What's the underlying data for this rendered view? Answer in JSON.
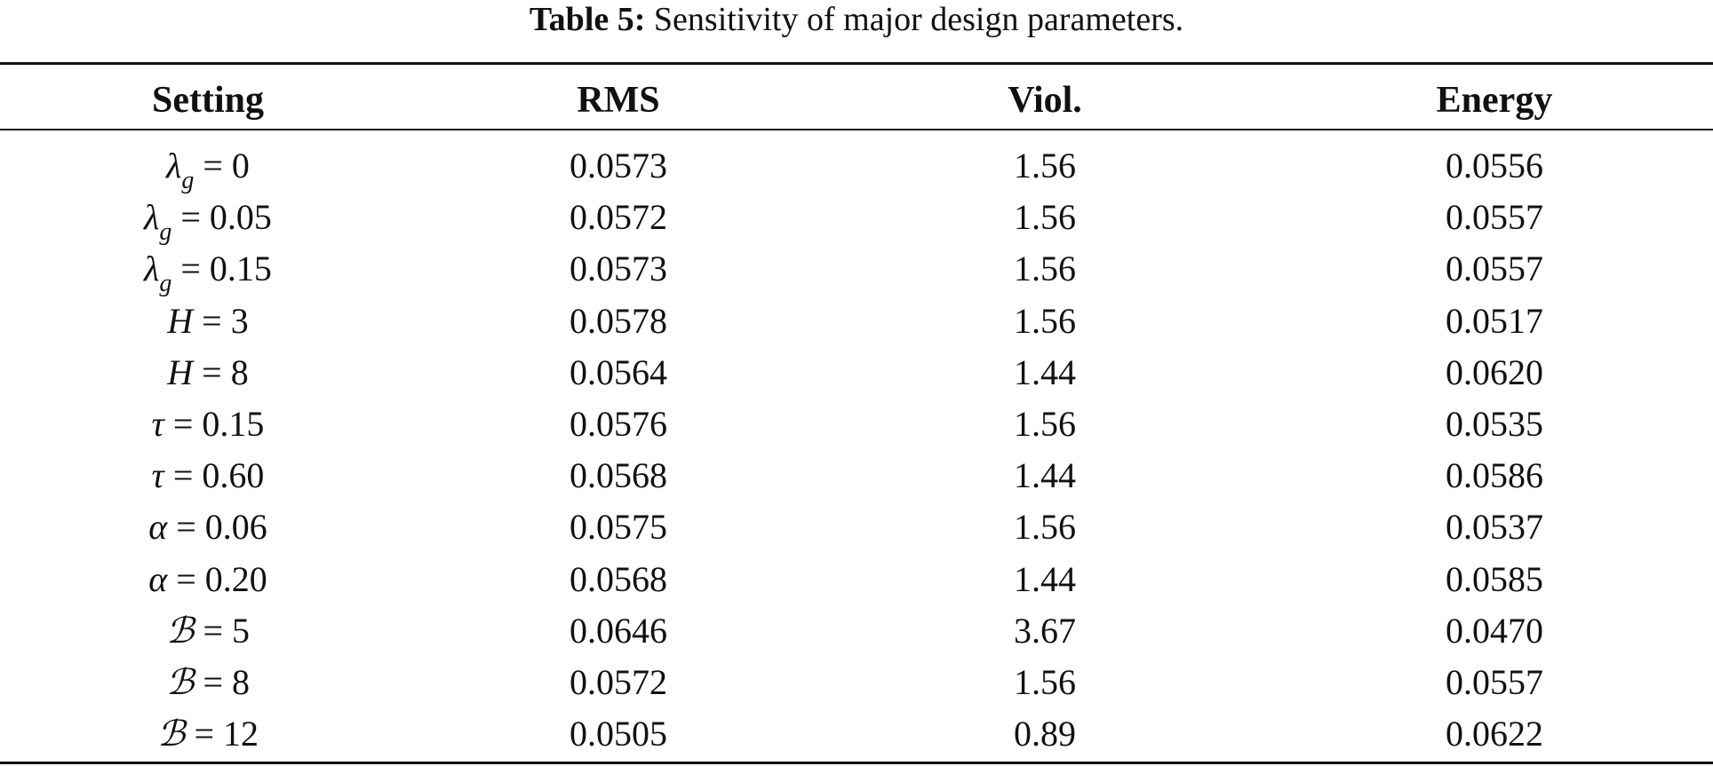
{
  "caption": {
    "label": "Table 5:",
    "text": " Sensitivity of major design parameters."
  },
  "table": {
    "columns": [
      "Setting",
      "RMS",
      "Viol.",
      "Energy"
    ],
    "rows": [
      {
        "symbol": "λ",
        "sub": "g",
        "rest": " = 0",
        "script": false,
        "rms": "0.0573",
        "viol": "1.56",
        "energy": "0.0556"
      },
      {
        "symbol": "λ",
        "sub": "g",
        "rest": " = 0.05",
        "script": false,
        "rms": "0.0572",
        "viol": "1.56",
        "energy": "0.0557"
      },
      {
        "symbol": "λ",
        "sub": "g",
        "rest": " = 0.15",
        "script": false,
        "rms": "0.0573",
        "viol": "1.56",
        "energy": "0.0557"
      },
      {
        "symbol": "H",
        "sub": "",
        "rest": " = 3",
        "script": false,
        "rms": "0.0578",
        "viol": "1.56",
        "energy": "0.0517"
      },
      {
        "symbol": "H",
        "sub": "",
        "rest": " = 8",
        "script": false,
        "rms": "0.0564",
        "viol": "1.44",
        "energy": "0.0620"
      },
      {
        "symbol": "τ",
        "sub": "",
        "rest": " = 0.15",
        "script": false,
        "rms": "0.0576",
        "viol": "1.56",
        "energy": "0.0535"
      },
      {
        "symbol": "τ",
        "sub": "",
        "rest": " = 0.60",
        "script": false,
        "rms": "0.0568",
        "viol": "1.44",
        "energy": "0.0586"
      },
      {
        "symbol": "α",
        "sub": "",
        "rest": " = 0.06",
        "script": false,
        "rms": "0.0575",
        "viol": "1.56",
        "energy": "0.0537"
      },
      {
        "symbol": "α",
        "sub": "",
        "rest": " = 0.20",
        "script": false,
        "rms": "0.0568",
        "viol": "1.44",
        "energy": "0.0585"
      },
      {
        "symbol": "ℬ",
        "sub": "",
        "rest": " = 5",
        "script": true,
        "rms": "0.0646",
        "viol": "3.67",
        "energy": "0.0470"
      },
      {
        "symbol": "ℬ",
        "sub": "",
        "rest": " = 8",
        "script": true,
        "rms": "0.0572",
        "viol": "1.56",
        "energy": "0.0557"
      },
      {
        "symbol": "ℬ",
        "sub": "",
        "rest": " = 12",
        "script": true,
        "rms": "0.0505",
        "viol": "0.89",
        "energy": "0.0622"
      }
    ]
  }
}
